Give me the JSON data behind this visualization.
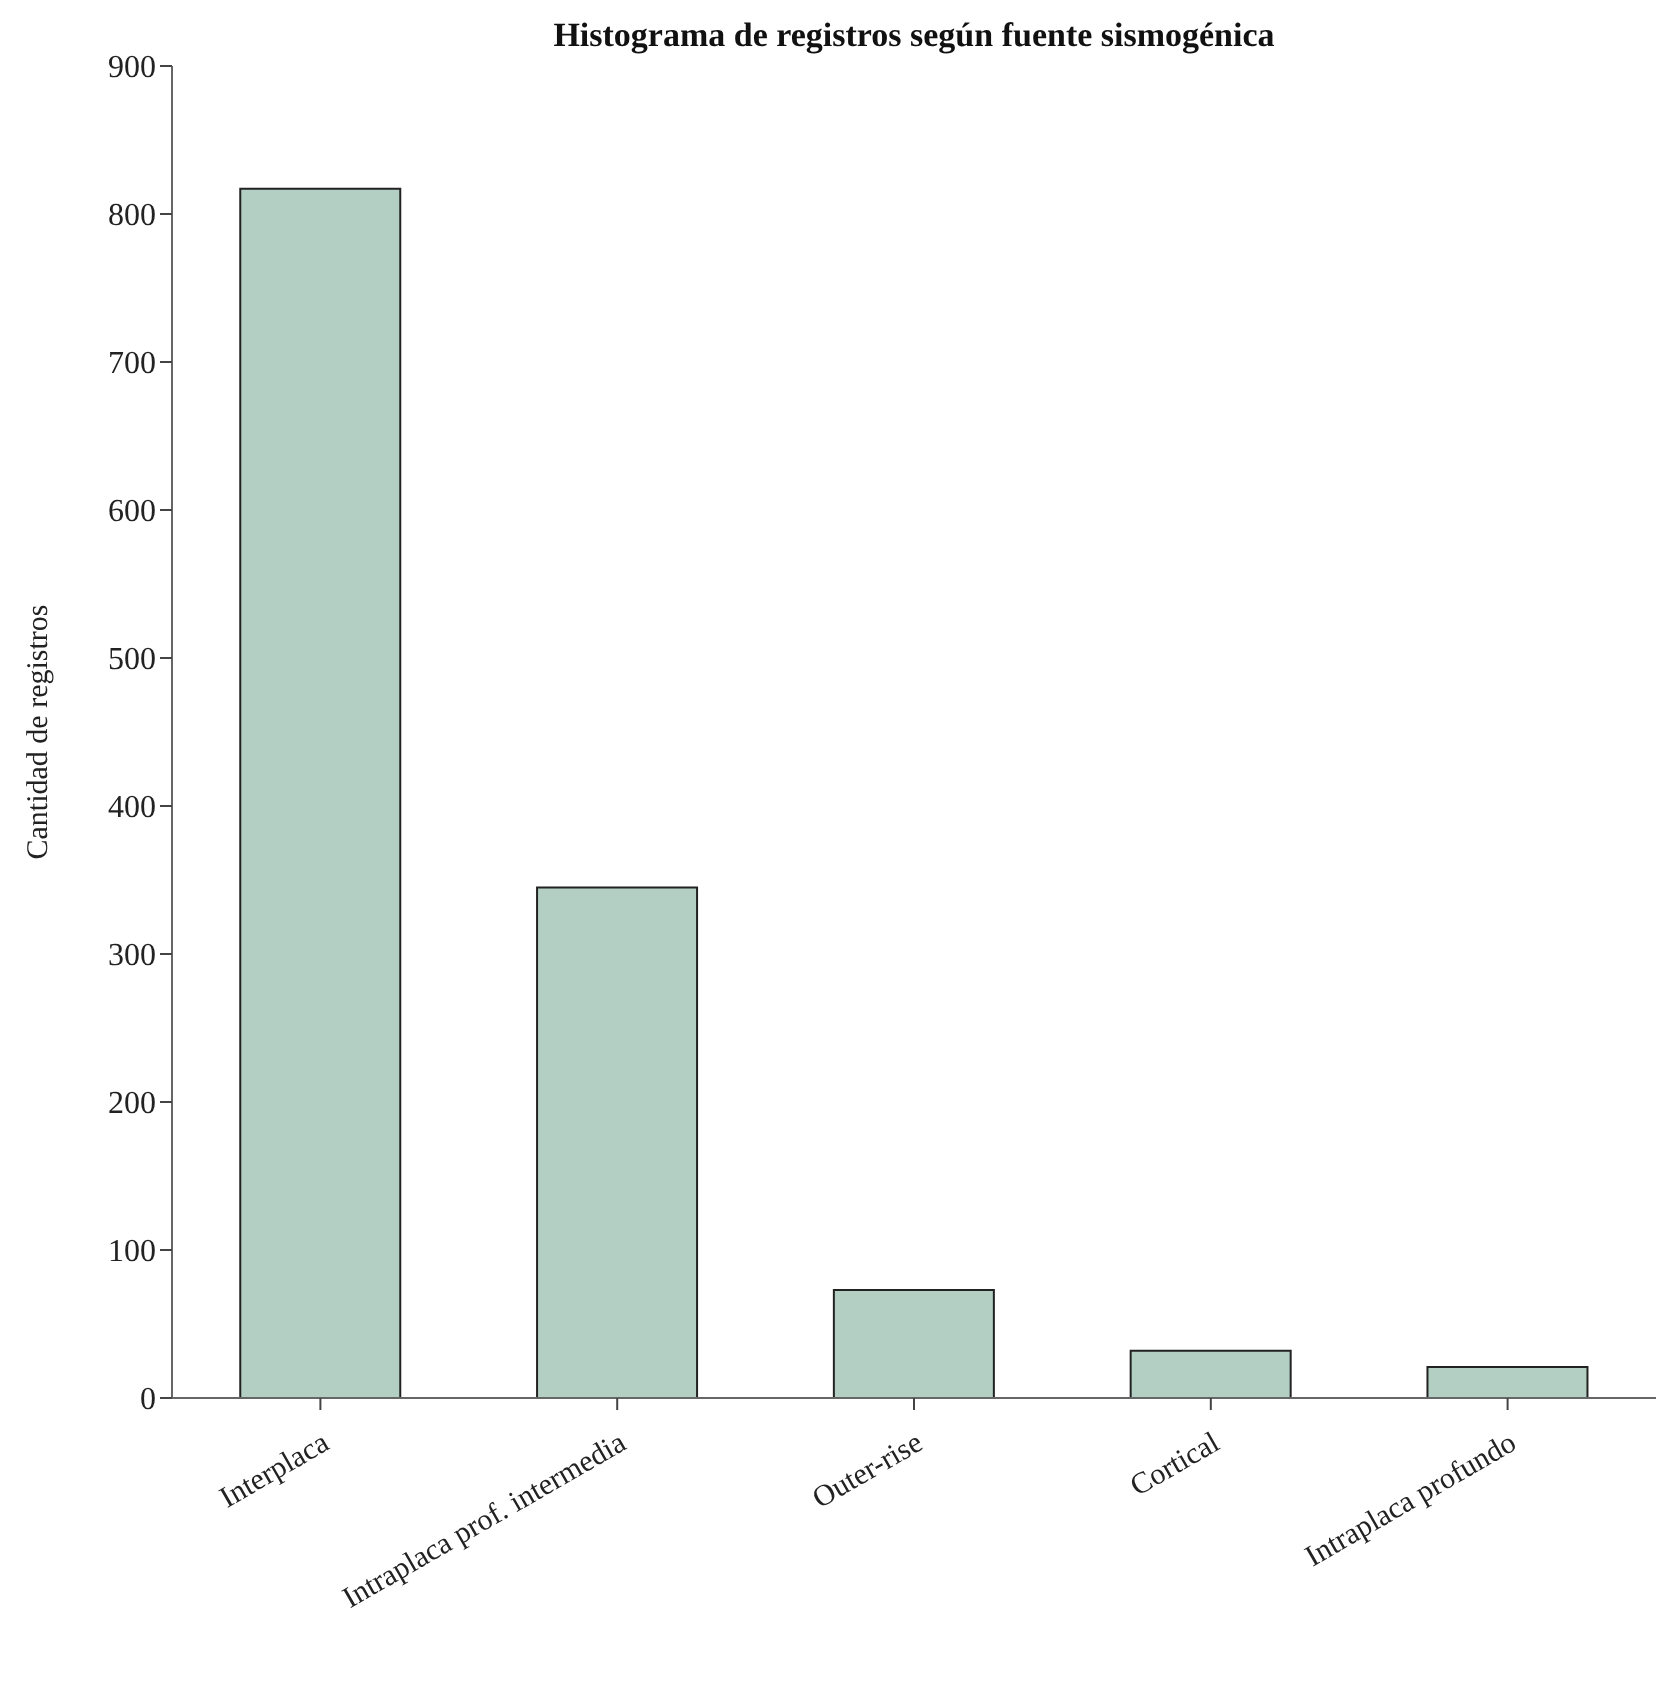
{
  "chart_data": {
    "type": "bar",
    "title": "Histograma de registros según fuente sismogénica",
    "ylabel": "Cantidad de registros",
    "categories": [
      "Interplaca",
      "Intraplaca prof. intermedia",
      "Outer-rise",
      "Cortical",
      "Intraplaca profundo"
    ],
    "values": [
      817,
      345,
      73,
      32,
      21
    ],
    "color": "#b3cfc3",
    "ylim": [
      0,
      900
    ],
    "yticks": [
      0,
      100,
      200,
      300,
      400,
      500,
      600,
      700,
      800,
      900
    ],
    "grid": false
  }
}
